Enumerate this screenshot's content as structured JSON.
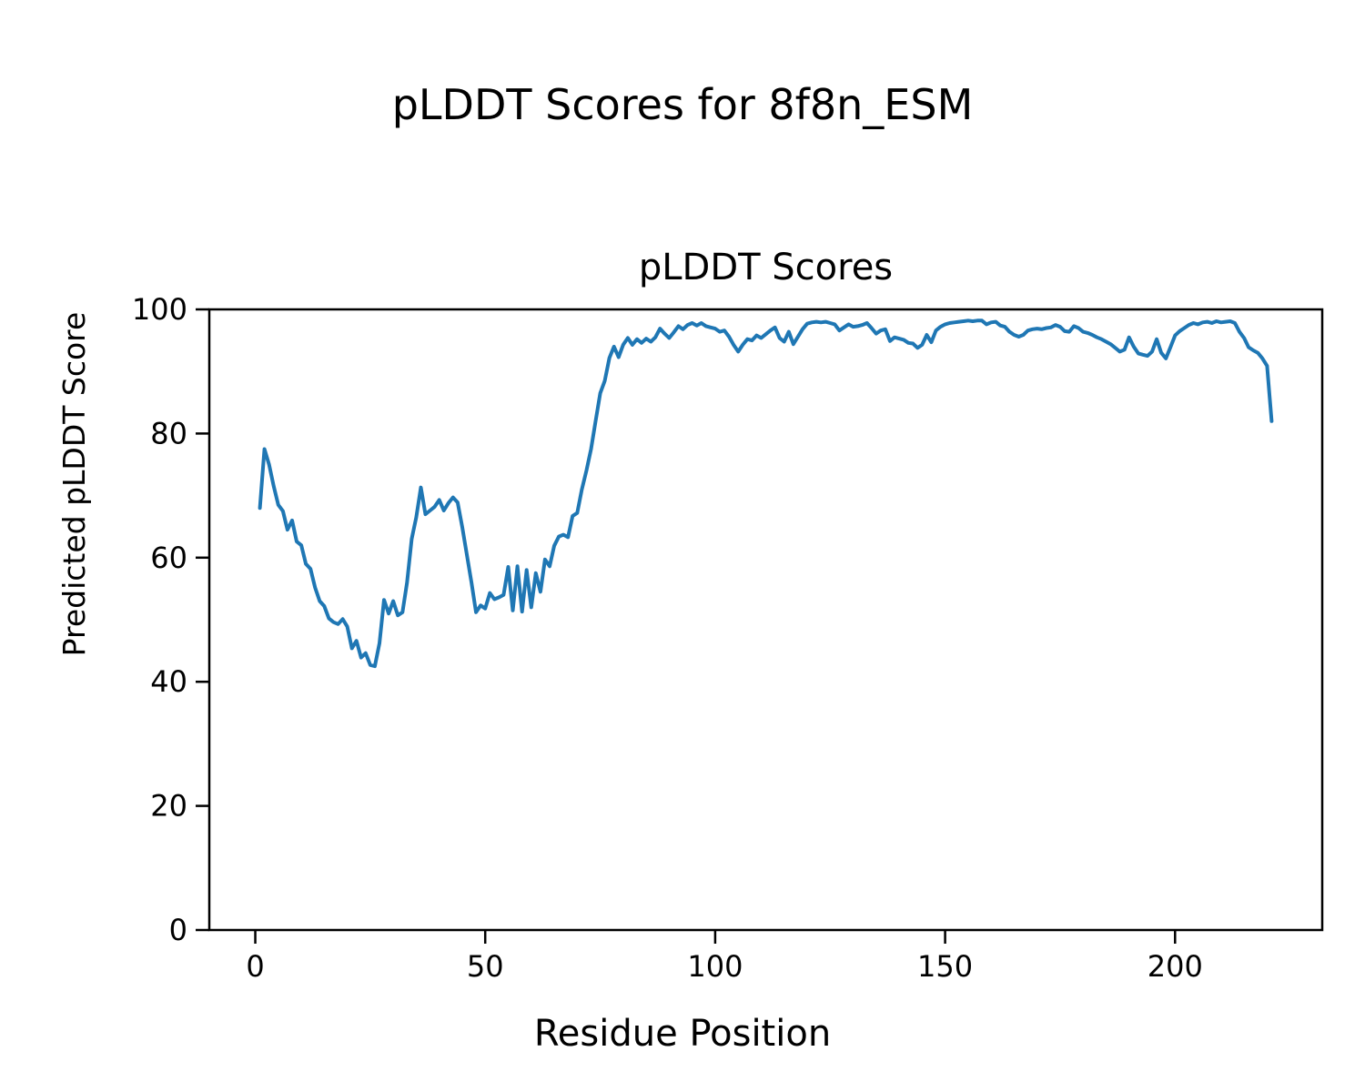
{
  "figure_title": "pLDDT Scores for 8f8n_ESM",
  "chart_data": {
    "type": "line",
    "title": "pLDDT Scores",
    "xlabel": "Residue Position",
    "ylabel": "Predicted pLDDT Score",
    "xlim": [
      -10,
      232
    ],
    "ylim": [
      0,
      100
    ],
    "xticks": [
      0,
      50,
      100,
      150,
      200
    ],
    "yticks": [
      0,
      20,
      40,
      60,
      80,
      100
    ],
    "grid": false,
    "legend_position": "none",
    "line_color": "#1f77b4",
    "series_name": "pLDDT",
    "x_start": 1,
    "x_step": 1,
    "x_end": 221,
    "values": [
      68.0,
      77.5,
      75.0,
      71.5,
      68.5,
      67.5,
      64.5,
      66.0,
      62.6,
      62.0,
      59.0,
      58.2,
      55.2,
      53.0,
      52.2,
      50.2,
      49.6,
      49.3,
      50.1,
      48.9,
      45.4,
      46.6,
      43.9,
      44.6,
      42.7,
      42.5,
      46.2,
      53.2,
      51.0,
      53.0,
      50.7,
      51.2,
      56.0,
      63.0,
      66.5,
      71.3,
      67.0,
      67.6,
      68.2,
      69.3,
      67.6,
      68.8,
      69.7,
      68.9,
      64.9,
      60.5,
      56.0,
      51.2,
      52.3,
      51.8,
      54.3,
      53.3,
      53.6,
      54.0,
      58.5,
      51.5,
      58.6,
      51.3,
      58.0,
      52.0,
      57.5,
      54.5,
      59.7,
      58.6,
      61.9,
      63.4,
      63.7,
      63.3,
      66.7,
      67.2,
      71.0,
      74.0,
      77.5,
      82.0,
      86.5,
      88.5,
      92.2,
      94.0,
      92.3,
      94.3,
      95.4,
      94.3,
      95.2,
      94.6,
      95.3,
      94.8,
      95.5,
      96.9,
      96.1,
      95.4,
      96.3,
      97.3,
      96.8,
      97.5,
      97.8,
      97.4,
      97.8,
      97.3,
      97.1,
      96.9,
      96.4,
      96.6,
      95.6,
      94.3,
      93.2,
      94.3,
      95.2,
      95.0,
      95.8,
      95.4,
      96.0,
      96.6,
      97.1,
      95.4,
      94.8,
      96.4,
      94.4,
      95.6,
      96.8,
      97.7,
      97.9,
      98.0,
      97.9,
      98.0,
      97.8,
      97.6,
      96.6,
      97.1,
      97.6,
      97.2,
      97.3,
      97.5,
      97.8,
      97.0,
      96.1,
      96.6,
      96.8,
      94.9,
      95.5,
      95.3,
      95.1,
      94.6,
      94.5,
      93.8,
      94.3,
      95.9,
      94.7,
      96.6,
      97.2,
      97.6,
      97.8,
      97.9,
      98.0,
      98.1,
      98.2,
      98.1,
      98.2,
      98.2,
      97.6,
      97.9,
      98.0,
      97.4,
      97.2,
      96.4,
      95.9,
      95.6,
      95.9,
      96.6,
      96.8,
      96.9,
      96.8,
      97.0,
      97.1,
      97.5,
      97.2,
      96.5,
      96.4,
      97.3,
      97.0,
      96.4,
      96.2,
      95.9,
      95.5,
      95.2,
      94.8,
      94.4,
      93.8,
      93.2,
      93.5,
      95.5,
      94.0,
      92.9,
      92.7,
      92.5,
      93.2,
      95.2,
      93.0,
      92.1,
      93.9,
      95.8,
      96.5,
      97.0,
      97.5,
      97.8,
      97.6,
      97.9,
      98.0,
      97.8,
      98.1,
      97.9,
      98.0,
      98.1,
      97.8,
      96.4,
      95.4,
      93.9,
      93.4,
      93.0,
      92.1,
      90.9,
      82.0
    ]
  }
}
